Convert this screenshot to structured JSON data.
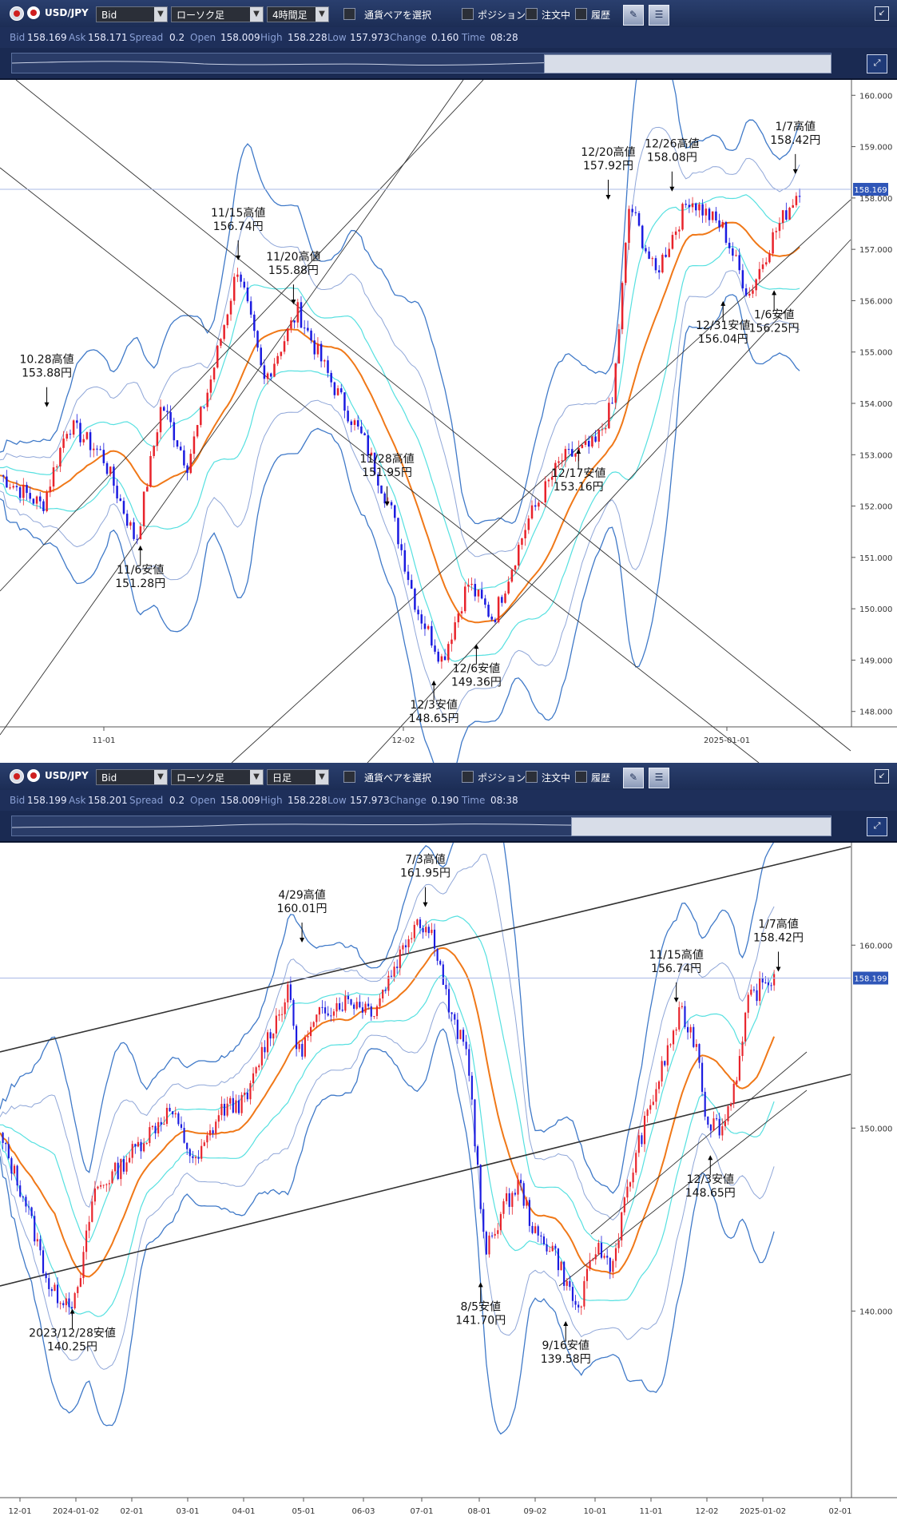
{
  "colors": {
    "up": "#e8232b",
    "down": "#1b1be0",
    "band_outer": "#3f79c8",
    "band_mid": "#8fa6d8",
    "band_inner": "#56e0e0",
    "ma": "#f07818",
    "trend": "#333333"
  },
  "toolbar": {
    "pair": "USD/JPY",
    "price_type": "Bid",
    "chart_type": "ローソク足",
    "pair_select_label": "通貨ペアを選択",
    "position_label": "ポジション",
    "order_label": "注文中",
    "history_label": "履歴"
  },
  "panels": [
    {
      "timeframe": "4時間足",
      "quote": {
        "bid_label": "Bid",
        "bid": "158.169",
        "ask_label": "Ask",
        "ask": "158.171",
        "spread_label": "Spread",
        "spread": "0.2",
        "open_label": "Open",
        "open": "158.009",
        "high_label": "High",
        "high": "158.228",
        "low_label": "Low",
        "low": "157.973",
        "change_label": "Change",
        "change": "0.160",
        "time_label": "Time",
        "time": "08:28"
      },
      "current_price": "158.169"
    },
    {
      "timeframe": "日足",
      "quote": {
        "bid_label": "Bid",
        "bid": "158.199",
        "ask_label": "Ask",
        "ask": "158.201",
        "spread_label": "Spread",
        "spread": "0.2",
        "open_label": "Open",
        "open": "158.009",
        "high_label": "High",
        "high": "158.228",
        "low_label": "Low",
        "low": "157.973",
        "change_label": "Change",
        "change": "0.190",
        "time_label": "Time",
        "time": "08:38"
      },
      "current_price": "158.199"
    }
  ],
  "chart_data": [
    {
      "type": "candlestick",
      "title": "",
      "xlabel": "",
      "ylabel": "",
      "ylim": [
        147.7,
        160.3
      ],
      "yticks": [
        "148.000",
        "149.000",
        "150.000",
        "151.000",
        "152.000",
        "153.000",
        "154.000",
        "155.000",
        "156.000",
        "157.000",
        "158.000",
        "159.000",
        "160.000"
      ],
      "xticks": [
        "11-01",
        "12-02",
        "2025-01-01"
      ],
      "grid": false,
      "last_price": 158.169,
      "close_path": [
        [
          0,
          152.6
        ],
        [
          0.05,
          152.0
        ],
        [
          0.08,
          153.6
        ],
        [
          0.12,
          153.0
        ],
        [
          0.16,
          151.3
        ],
        [
          0.19,
          154.0
        ],
        [
          0.22,
          152.8
        ],
        [
          0.25,
          154.6
        ],
        [
          0.28,
          156.7
        ],
        [
          0.31,
          154.4
        ],
        [
          0.35,
          155.8
        ],
        [
          0.39,
          154.4
        ],
        [
          0.43,
          153.2
        ],
        [
          0.46,
          151.9
        ],
        [
          0.49,
          150.0
        ],
        [
          0.52,
          149.0
        ],
        [
          0.55,
          150.5
        ],
        [
          0.58,
          149.8
        ],
        [
          0.62,
          151.7
        ],
        [
          0.66,
          152.9
        ],
        [
          0.7,
          153.2
        ],
        [
          0.72,
          154.0
        ],
        [
          0.74,
          157.9
        ],
        [
          0.77,
          156.5
        ],
        [
          0.81,
          158.0
        ],
        [
          0.85,
          157.4
        ],
        [
          0.88,
          156.1
        ],
        [
          0.91,
          157.3
        ],
        [
          0.94,
          158.2
        ]
      ],
      "annotations": [
        {
          "label": "10.28高値",
          "value": "153.88円",
          "price": 153.88,
          "t": 0.055,
          "pos": "above"
        },
        {
          "label": "11/6安値",
          "value": "151.28円",
          "price": 151.28,
          "t": 0.165,
          "pos": "below"
        },
        {
          "label": "11/15高値",
          "value": "156.74円",
          "price": 156.74,
          "t": 0.28,
          "pos": "above"
        },
        {
          "label": "11/20高値",
          "value": "155.88円",
          "price": 155.88,
          "t": 0.345,
          "pos": "above"
        },
        {
          "label": "11/28高値",
          "value": "151.95円",
          "price": 151.95,
          "t": 0.455,
          "pos": "above"
        },
        {
          "label": "12/3安値",
          "value": "148.65円",
          "price": 148.65,
          "t": 0.51,
          "pos": "below"
        },
        {
          "label": "12/6安値",
          "value": "149.36円",
          "price": 149.36,
          "t": 0.56,
          "pos": "below"
        },
        {
          "label": "12/17安値",
          "value": "153.16円",
          "price": 153.16,
          "t": 0.68,
          "pos": "below"
        },
        {
          "label": "12/20高値",
          "value": "157.92円",
          "price": 157.92,
          "t": 0.715,
          "pos": "above"
        },
        {
          "label": "12/26高値",
          "value": "158.08円",
          "price": 158.08,
          "t": 0.79,
          "pos": "above"
        },
        {
          "label": "12/31安値",
          "value": "156.04円",
          "price": 156.04,
          "t": 0.85,
          "pos": "below"
        },
        {
          "label": "1/6安値",
          "value": "156.25円",
          "price": 156.25,
          "t": 0.91,
          "pos": "below"
        },
        {
          "label": "1/7高値",
          "value": "158.42円",
          "price": 158.42,
          "t": 0.935,
          "pos": "above"
        }
      ]
    },
    {
      "type": "candlestick",
      "title": "",
      "xlabel": "",
      "ylabel": "",
      "ylim": [
        129.8,
        165.6
      ],
      "yticks": [
        "140.000",
        "150.000",
        "160.000"
      ],
      "xticks": [
        "12-01",
        "2024-01-02",
        "02-01",
        "03-01",
        "04-01",
        "05-01",
        "06-03",
        "07-01",
        "08-01",
        "09-02",
        "10-01",
        "11-01",
        "12-02",
        "2025-01-02",
        "02-01"
      ],
      "grid": false,
      "last_price": 158.199,
      "close_path": [
        [
          0,
          149.5
        ],
        [
          0.03,
          146.0
        ],
        [
          0.06,
          141.0
        ],
        [
          0.09,
          140.5
        ],
        [
          0.11,
          146.5
        ],
        [
          0.14,
          147.8
        ],
        [
          0.17,
          149.5
        ],
        [
          0.2,
          151.0
        ],
        [
          0.23,
          148.0
        ],
        [
          0.26,
          151.0
        ],
        [
          0.29,
          151.5
        ],
        [
          0.31,
          154.5
        ],
        [
          0.34,
          157.5
        ],
        [
          0.35,
          154.0
        ],
        [
          0.38,
          156.5
        ],
        [
          0.41,
          157.0
        ],
        [
          0.44,
          156.5
        ],
        [
          0.47,
          159.5
        ],
        [
          0.49,
          161.5
        ],
        [
          0.51,
          160.5
        ],
        [
          0.53,
          156.0
        ],
        [
          0.55,
          154.0
        ],
        [
          0.56,
          148.5
        ],
        [
          0.57,
          143.0
        ],
        [
          0.59,
          145.5
        ],
        [
          0.61,
          147.0
        ],
        [
          0.63,
          144.0
        ],
        [
          0.65,
          143.5
        ],
        [
          0.67,
          141.0
        ],
        [
          0.68,
          140.0
        ],
        [
          0.7,
          143.5
        ],
        [
          0.72,
          142.5
        ],
        [
          0.73,
          145.0
        ],
        [
          0.75,
          149.0
        ],
        [
          0.77,
          152.0
        ],
        [
          0.79,
          155.0
        ],
        [
          0.8,
          156.3
        ],
        [
          0.82,
          154.5
        ],
        [
          0.83,
          150.5
        ],
        [
          0.85,
          150.0
        ],
        [
          0.87,
          153.8
        ],
        [
          0.88,
          157.0
        ],
        [
          0.9,
          158.0
        ],
        [
          0.91,
          158.2
        ]
      ],
      "annotations": [
        {
          "label": "2023/12/28安値",
          "value": "140.25円",
          "price": 140.25,
          "t": 0.085,
          "pos": "below"
        },
        {
          "label": "4/29高値",
          "value": "160.01円",
          "price": 160.01,
          "t": 0.355,
          "pos": "above"
        },
        {
          "label": "7/3高値",
          "value": "161.95円",
          "price": 161.95,
          "t": 0.5,
          "pos": "above"
        },
        {
          "label": "8/5安値",
          "value": "141.70円",
          "price": 141.7,
          "t": 0.565,
          "pos": "below"
        },
        {
          "label": "9/16安値",
          "value": "139.58円",
          "price": 139.58,
          "t": 0.665,
          "pos": "below"
        },
        {
          "label": "11/15高値",
          "value": "156.74円",
          "price": 156.74,
          "t": 0.795,
          "pos": "above"
        },
        {
          "label": "12/3安値",
          "value": "148.65円",
          "price": 148.65,
          "t": 0.835,
          "pos": "below"
        },
        {
          "label": "1/7高値",
          "value": "158.42円",
          "price": 158.42,
          "t": 0.915,
          "pos": "above"
        }
      ]
    }
  ]
}
